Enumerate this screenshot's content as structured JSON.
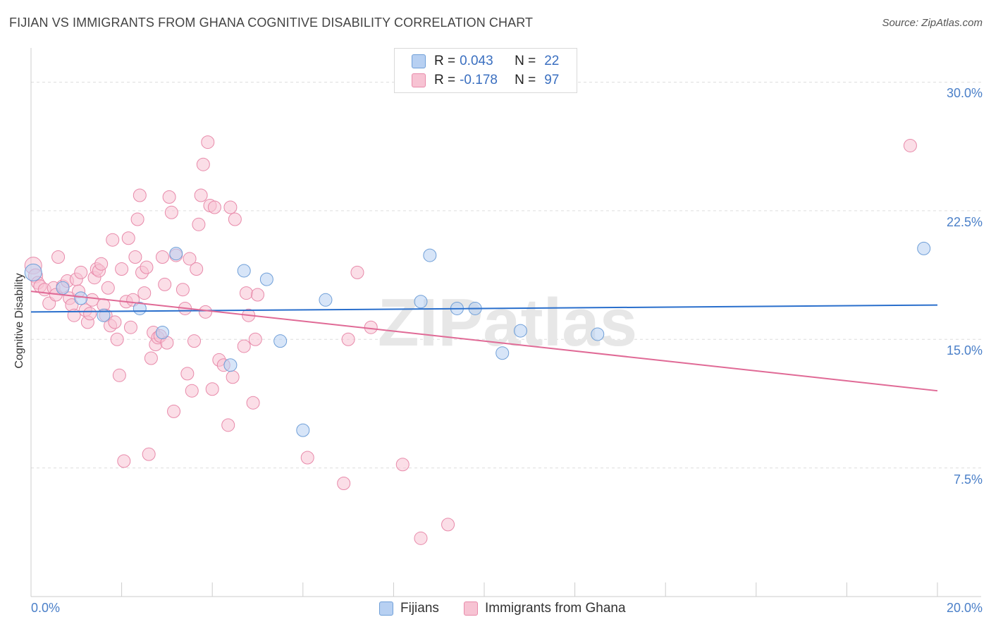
{
  "title": "FIJIAN VS IMMIGRANTS FROM GHANA COGNITIVE DISABILITY CORRELATION CHART",
  "source": "Source: ZipAtlas.com",
  "watermark": "ZIPatlas",
  "legend": {
    "rows": [
      {
        "r_label": "R =",
        "r_value": "0.043",
        "n_label": "N =",
        "n_value": "22"
      },
      {
        "r_label": "R =",
        "r_value": "-0.178",
        "n_label": "N =",
        "n_value": "97"
      }
    ]
  },
  "bottom_legend": [
    "Fijians",
    "Immigrants from Ghana"
  ],
  "colors": {
    "fijians_fill": "#b7d0f2",
    "fijians_stroke": "#6f9fd8",
    "fijians_line": "#2a6fcc",
    "ghana_fill": "#f7c3d3",
    "ghana_stroke": "#e88aaa",
    "ghana_line": "#e06a96",
    "tick_label": "#4a7fc8",
    "grid": "#dddddd"
  },
  "chart_data": {
    "type": "scatter",
    "title": "FIJIAN VS IMMIGRANTS FROM GHANA COGNITIVE DISABILITY CORRELATION CHART",
    "xlabel": "",
    "ylabel": "Cognitive Disability",
    "xlim": [
      0,
      20
    ],
    "ylim": [
      0,
      31.5
    ],
    "x_tick_labels": [
      "0.0%",
      "20.0%"
    ],
    "y_ticks": [
      7.5,
      15.0,
      22.5,
      30.0
    ],
    "y_tick_labels": [
      "7.5%",
      "15.0%",
      "22.5%",
      "30.0%"
    ],
    "grid": true,
    "legend_position": "top-center",
    "series": [
      {
        "name": "Fijians",
        "trend": {
          "x": [
            0,
            20
          ],
          "y": [
            16.6,
            17.0
          ]
        },
        "points": [
          [
            0.05,
            18.9,
            12
          ],
          [
            0.7,
            18.0,
            9
          ],
          [
            1.1,
            17.4,
            9
          ],
          [
            1.6,
            16.4,
            9
          ],
          [
            2.4,
            16.8,
            9
          ],
          [
            2.9,
            15.4,
            9
          ],
          [
            3.2,
            20.0,
            9
          ],
          [
            4.4,
            13.5,
            9
          ],
          [
            4.7,
            19.0,
            9
          ],
          [
            5.2,
            18.5,
            9
          ],
          [
            5.5,
            14.9,
            9
          ],
          [
            6.0,
            9.7,
            9
          ],
          [
            6.5,
            17.3,
            9
          ],
          [
            8.6,
            17.2,
            9
          ],
          [
            8.8,
            19.9,
            9
          ],
          [
            9.4,
            16.8,
            9
          ],
          [
            9.8,
            16.8,
            9
          ],
          [
            10.4,
            14.2,
            9
          ],
          [
            10.8,
            15.5,
            9
          ],
          [
            12.5,
            15.3,
            9
          ],
          [
            19.7,
            20.3,
            9
          ]
        ]
      },
      {
        "name": "Immigrants from Ghana",
        "trend": {
          "x": [
            0,
            20
          ],
          "y": [
            17.8,
            12.0
          ]
        },
        "points": [
          [
            0.05,
            19.3,
            12
          ],
          [
            0.1,
            18.7,
            10
          ],
          [
            0.15,
            18.3,
            9
          ],
          [
            0.2,
            18.1,
            9
          ],
          [
            0.3,
            17.9,
            9
          ],
          [
            0.4,
            17.1,
            9
          ],
          [
            0.5,
            18.0,
            9
          ],
          [
            0.55,
            17.6,
            9
          ],
          [
            0.6,
            19.8,
            9
          ],
          [
            0.7,
            18.1,
            9
          ],
          [
            0.8,
            18.4,
            9
          ],
          [
            0.85,
            17.4,
            9
          ],
          [
            0.9,
            17.0,
            9
          ],
          [
            0.95,
            16.4,
            9
          ],
          [
            1.0,
            18.5,
            9
          ],
          [
            1.05,
            17.8,
            9
          ],
          [
            1.1,
            18.9,
            9
          ],
          [
            1.2,
            16.7,
            9
          ],
          [
            1.25,
            16.0,
            9
          ],
          [
            1.3,
            16.5,
            9
          ],
          [
            1.35,
            17.3,
            9
          ],
          [
            1.4,
            18.6,
            9
          ],
          [
            1.45,
            19.1,
            9
          ],
          [
            1.5,
            19.0,
            9
          ],
          [
            1.55,
            19.4,
            9
          ],
          [
            1.6,
            17.0,
            9
          ],
          [
            1.65,
            16.4,
            9
          ],
          [
            1.7,
            18.0,
            9
          ],
          [
            1.75,
            15.8,
            9
          ],
          [
            1.8,
            20.8,
            9
          ],
          [
            1.85,
            16.0,
            9
          ],
          [
            1.9,
            15.0,
            9
          ],
          [
            1.95,
            12.9,
            9
          ],
          [
            2.0,
            19.1,
            9
          ],
          [
            2.05,
            7.9,
            9
          ],
          [
            2.1,
            17.2,
            9
          ],
          [
            2.15,
            20.9,
            9
          ],
          [
            2.2,
            15.7,
            9
          ],
          [
            2.25,
            17.3,
            9
          ],
          [
            2.3,
            19.8,
            9
          ],
          [
            2.35,
            22.0,
            9
          ],
          [
            2.4,
            23.4,
            9
          ],
          [
            2.45,
            18.9,
            9
          ],
          [
            2.5,
            17.7,
            9
          ],
          [
            2.55,
            19.2,
            9
          ],
          [
            2.6,
            8.3,
            9
          ],
          [
            2.65,
            13.9,
            9
          ],
          [
            2.7,
            15.4,
            9
          ],
          [
            2.75,
            14.7,
            9
          ],
          [
            2.8,
            15.1,
            9
          ],
          [
            2.85,
            15.2,
            9
          ],
          [
            2.9,
            19.8,
            9
          ],
          [
            2.95,
            18.2,
            9
          ],
          [
            3.0,
            14.8,
            9
          ],
          [
            3.05,
            23.3,
            9
          ],
          [
            3.1,
            22.4,
            9
          ],
          [
            3.15,
            10.8,
            9
          ],
          [
            3.2,
            19.9,
            9
          ],
          [
            3.35,
            17.9,
            9
          ],
          [
            3.4,
            16.8,
            9
          ],
          [
            3.45,
            13.0,
            9
          ],
          [
            3.5,
            19.7,
            9
          ],
          [
            3.55,
            12.0,
            9
          ],
          [
            3.6,
            14.9,
            9
          ],
          [
            3.65,
            19.1,
            9
          ],
          [
            3.7,
            21.7,
            9
          ],
          [
            3.75,
            23.4,
            9
          ],
          [
            3.8,
            25.2,
            9
          ],
          [
            3.85,
            16.6,
            9
          ],
          [
            3.9,
            26.5,
            9
          ],
          [
            3.95,
            22.8,
            9
          ],
          [
            4.0,
            12.1,
            9
          ],
          [
            4.05,
            22.7,
            9
          ],
          [
            4.15,
            13.8,
            9
          ],
          [
            4.25,
            13.5,
            9
          ],
          [
            4.35,
            10.0,
            9
          ],
          [
            4.4,
            22.7,
            9
          ],
          [
            4.45,
            12.8,
            9
          ],
          [
            4.5,
            22.0,
            9
          ],
          [
            4.7,
            14.6,
            9
          ],
          [
            4.75,
            17.7,
            9
          ],
          [
            4.8,
            16.4,
            9
          ],
          [
            4.9,
            11.3,
            9
          ],
          [
            4.95,
            15.0,
            9
          ],
          [
            5.0,
            17.6,
            9
          ],
          [
            6.1,
            8.1,
            9
          ],
          [
            6.9,
            6.6,
            9
          ],
          [
            7.0,
            15.0,
            9
          ],
          [
            7.2,
            18.9,
            9
          ],
          [
            7.5,
            15.7,
            9
          ],
          [
            8.2,
            7.7,
            9
          ],
          [
            8.6,
            3.4,
            9
          ],
          [
            9.2,
            4.2,
            9
          ],
          [
            19.4,
            26.3,
            9
          ]
        ]
      }
    ]
  }
}
